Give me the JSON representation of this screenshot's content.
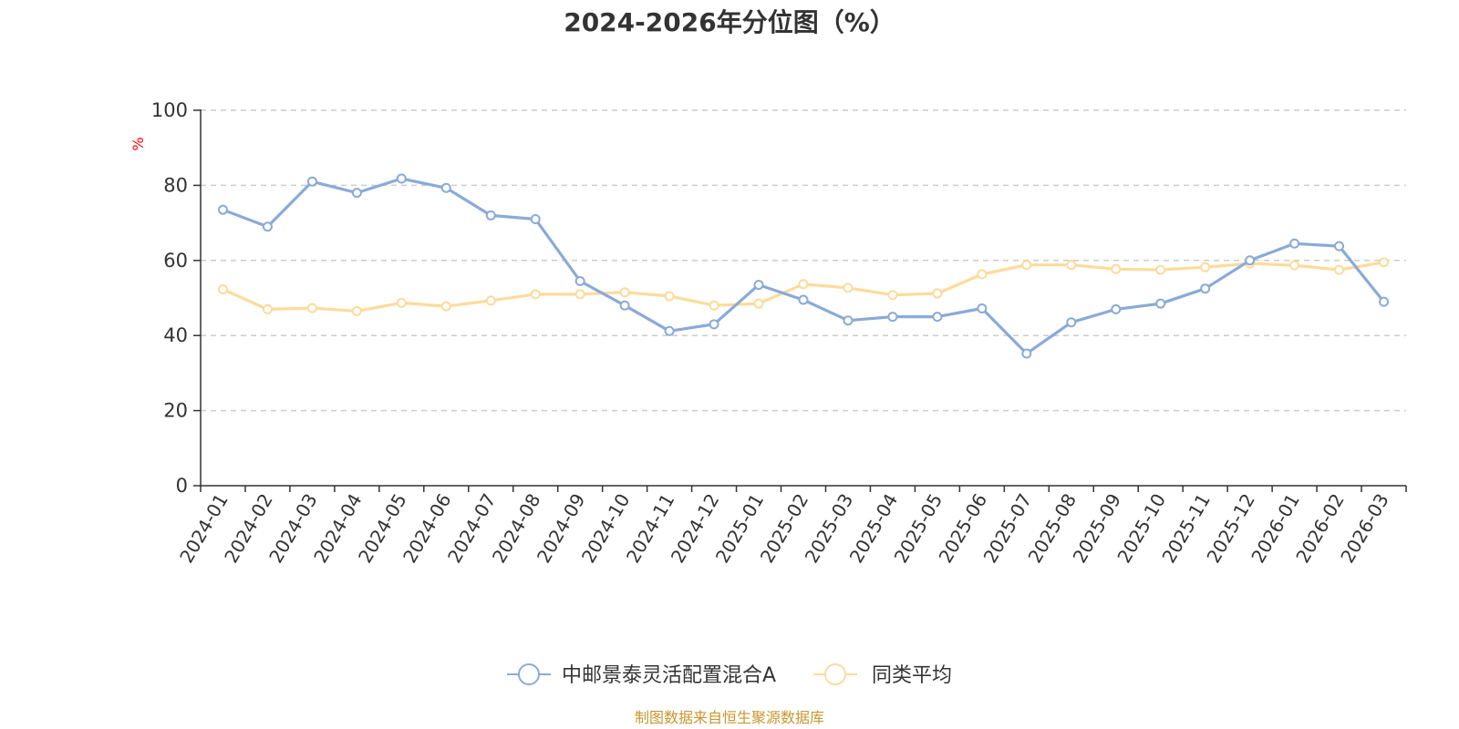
{
  "chart_data": {
    "type": "line",
    "title": "2024-2026年分位图（%）",
    "ylabel": "%",
    "xlabel": "",
    "ylim": [
      0,
      100
    ],
    "yticks": [
      0,
      20,
      40,
      60,
      80,
      100
    ],
    "grid": true,
    "legend_position": "bottom-center",
    "categories": [
      "2024-01",
      "2024-02",
      "2024-03",
      "2024-04",
      "2024-05",
      "2024-06",
      "2024-07",
      "2024-08",
      "2024-09",
      "2024-10",
      "2024-11",
      "2024-12",
      "2025-01",
      "2025-02",
      "2025-03",
      "2025-04",
      "2025-05",
      "2025-06",
      "2025-07",
      "2025-08",
      "2025-09",
      "2025-10",
      "2025-11",
      "2025-12",
      "2026-01",
      "2026-02",
      "2026-03"
    ],
    "series": [
      {
        "name": "中邮景泰灵活配置混合A",
        "color": "#8aaad8",
        "values": [
          73.5,
          69.0,
          81.0,
          78.0,
          81.8,
          79.3,
          72.0,
          71.0,
          54.5,
          48.0,
          41.2,
          43.0,
          53.5,
          49.5,
          44.0,
          45.0,
          45.0,
          47.2,
          35.2,
          43.5,
          47.0,
          48.5,
          52.5,
          60.0,
          64.5,
          63.8,
          49.0
        ]
      },
      {
        "name": "同类平均",
        "color": "#fddb9b",
        "values": [
          52.3,
          47.0,
          47.3,
          46.5,
          48.7,
          47.8,
          49.3,
          51.0,
          51.0,
          51.5,
          50.5,
          48.0,
          48.5,
          53.7,
          52.7,
          50.8,
          51.2,
          56.3,
          58.8,
          58.8,
          57.7,
          57.5,
          58.2,
          59.2,
          58.7,
          57.5,
          59.5
        ]
      }
    ]
  },
  "footer": {
    "source": "制图数据来自恒生聚源数据库"
  }
}
